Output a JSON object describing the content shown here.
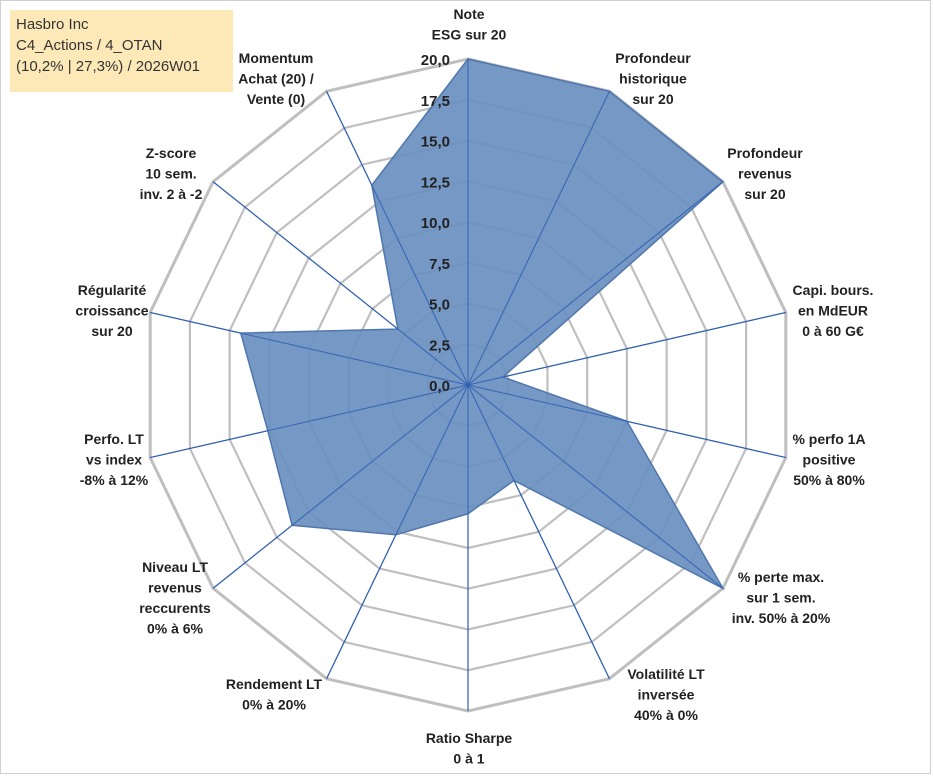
{
  "info_box": {
    "line1": "Hasbro Inc",
    "line2": "C4_Actions / 4_OTAN",
    "line3": "(10,2% | 27,3%) / 2026W01"
  },
  "colors": {
    "fill": "#6a8fbf",
    "fill_stroke": "#4f77ad",
    "grid": "#bfbfbf",
    "spoke": "#2f5fb3",
    "info_bg": "#fde9b8"
  },
  "chart_data": {
    "type": "radar",
    "rmin": 0,
    "rmax": 20,
    "ticks": [
      "0,0",
      "2,5",
      "5,0",
      "7,5",
      "10,0",
      "12,5",
      "15,0",
      "17,5",
      "20,0"
    ],
    "tick_values": [
      0,
      2.5,
      5,
      7.5,
      10,
      12.5,
      15,
      17.5,
      20
    ],
    "axes": [
      {
        "label": [
          "Note",
          "ESG sur 20"
        ],
        "value": 20
      },
      {
        "label": [
          "Profondeur",
          "historique",
          "sur 20"
        ],
        "value": 20
      },
      {
        "label": [
          "Profondeur",
          "revenus",
          "sur 20"
        ],
        "value": 20
      },
      {
        "label": [
          "Capi. bours.",
          "en MdEUR",
          "0 à 60 G€"
        ],
        "value": 2.2
      },
      {
        "label": [
          "% perfo 1A",
          "positive",
          "50% à 80%"
        ],
        "value": 10
      },
      {
        "label": [
          "% perte max.",
          "sur 1 sem.",
          "inv. 50% à 20%"
        ],
        "value": 20
      },
      {
        "label": [
          "Volatilité LT",
          "inversée",
          "40% à 0%"
        ],
        "value": 6.5
      },
      {
        "label": [
          "Ratio Sharpe",
          "0 à 1"
        ],
        "value": 7.9
      },
      {
        "label": [
          "Rendement LT",
          "0% à 20%"
        ],
        "value": 10.2
      },
      {
        "label": [
          "Niveau LT",
          "revenus",
          "reccurents",
          "0% à 6%"
        ],
        "value": 13.8
      },
      {
        "label": [
          "Perfo. LT",
          "vs index",
          "-8% à 12%"
        ],
        "value": 12.6
      },
      {
        "label": [
          "Régularité",
          "croissance",
          "sur 20"
        ],
        "value": 14.3
      },
      {
        "label": [
          "Z-score",
          "10 sem.",
          "inv. 2 à -2"
        ],
        "value": 5.5
      },
      {
        "label": [
          "Momentum",
          "Achat (20) /",
          "Vente (0)"
        ],
        "value": 13.6
      }
    ]
  }
}
